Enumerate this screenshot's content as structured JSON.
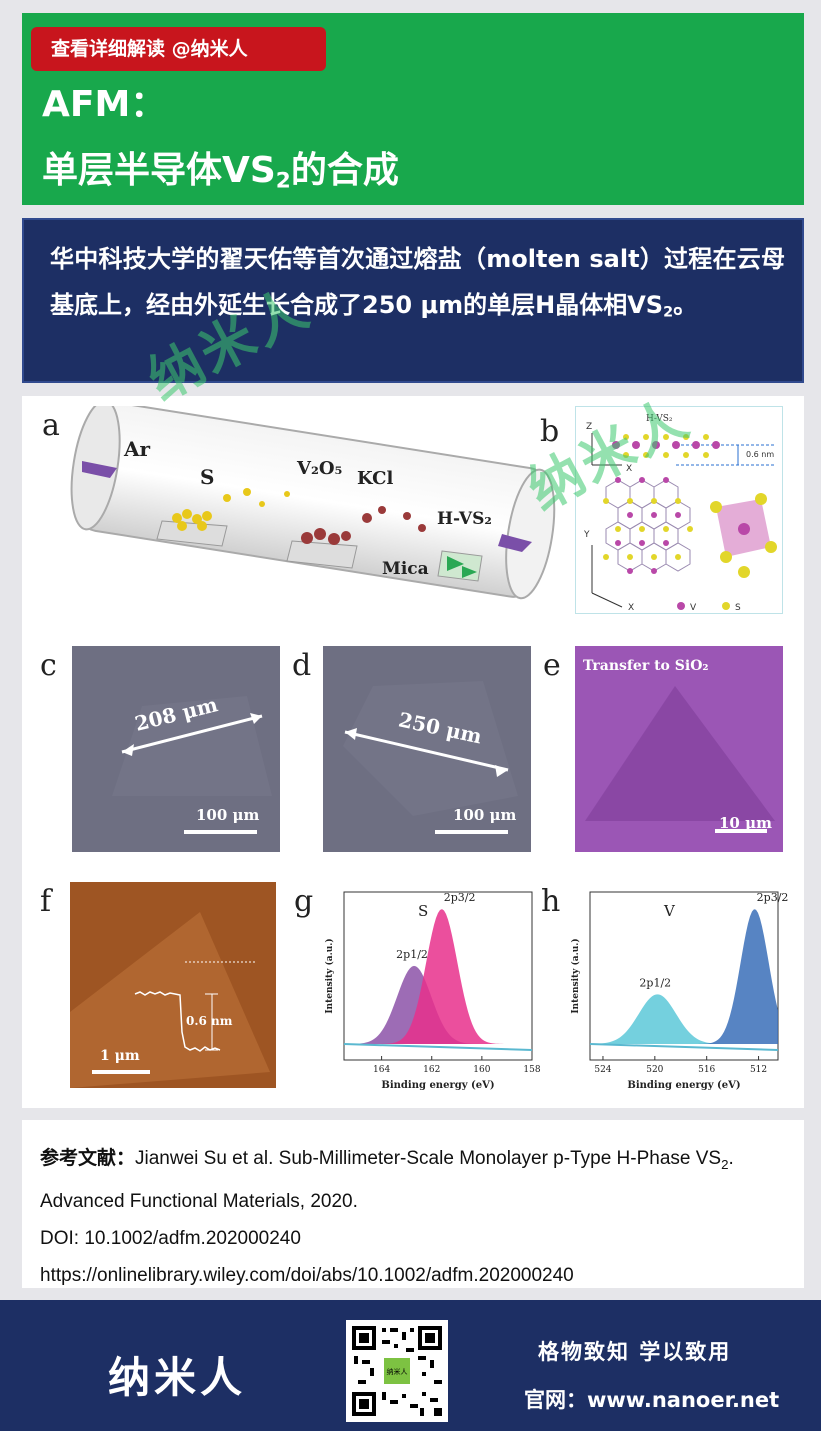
{
  "header": {
    "tag": "查看详细解读 @纳米人",
    "title_line1": "AFM：",
    "title_line2_pre": "单层半导体VS",
    "title_line2_sub": "2",
    "title_line2_post": "的合成"
  },
  "summary": {
    "text_main": "华中科技大学的翟天佑等首次通过熔盐（molten salt）过程在云母基底上，经由外延生长合成了250 μm的单层H晶体相VS",
    "text_sub": "2",
    "text_end": "。"
  },
  "watermark": "纳米人",
  "figure": {
    "panels": {
      "a": "a",
      "b": "b",
      "c": "c",
      "d": "d",
      "e": "e",
      "f": "f",
      "g": "g",
      "h": "h"
    },
    "a": {
      "ar": "Ar",
      "s": "S",
      "v2o5": "V₂O₅",
      "kcl": "KCl",
      "hvs2": "H-VS₂",
      "mica": "Mica"
    },
    "b": {
      "hvs2": "H-VS₂",
      "thickness": "0.6 nm",
      "z": "Z",
      "x": "X",
      "y": "Y",
      "x2": "X",
      "legend_v": "V",
      "legend_s": "S"
    },
    "c": {
      "size": "208 μm",
      "scale": "100 μm"
    },
    "d": {
      "size": "250 μm",
      "scale": "100 μm"
    },
    "e": {
      "label": "Transfer to SiO₂",
      "scale": "10 μm"
    },
    "f": {
      "height": "0.6 nm",
      "scale": "1 μm"
    }
  },
  "chart_data": [
    {
      "type": "line",
      "title": "S",
      "xlabel": "Binding energy (eV)",
      "ylabel": "Intensity (a.u.)",
      "xlim": [
        165.5,
        158
      ],
      "x_ticks": [
        "164",
        "162",
        "160",
        "158"
      ],
      "series": [
        {
          "name": "2p1/2",
          "peak": 162.7
        },
        {
          "name": "2p3/2",
          "peak": 161.6
        }
      ]
    },
    {
      "type": "line",
      "title": "V",
      "xlabel": "Binding energy (eV)",
      "ylabel": "Intensity (a.u.)",
      "xlim": [
        525,
        510.5
      ],
      "x_ticks": [
        "524",
        "520",
        "516",
        "512"
      ],
      "series": [
        {
          "name": "2p1/2",
          "peak": 519.8
        },
        {
          "name": "2p3/2",
          "peak": 512.3
        }
      ]
    }
  ],
  "reference": {
    "label": "参考文献：",
    "text": "Jianwei Su et al. Sub-Millimeter-Scale Monolayer p-Type H-Phase VS",
    "text_sub": "2",
    "text_end": ".",
    "journal": "Advanced Functional Materials, 2020.",
    "doi": "DOI: 10.1002/adfm.202000240",
    "url": "https://onlinelibrary.wiley.com/doi/abs/10.1002/adfm.202000240"
  },
  "footer": {
    "brand": "纳米人",
    "qr_label": "纳米人",
    "slogan": "格物致知  学以致用",
    "site": "官网：www.nanoer.net"
  }
}
